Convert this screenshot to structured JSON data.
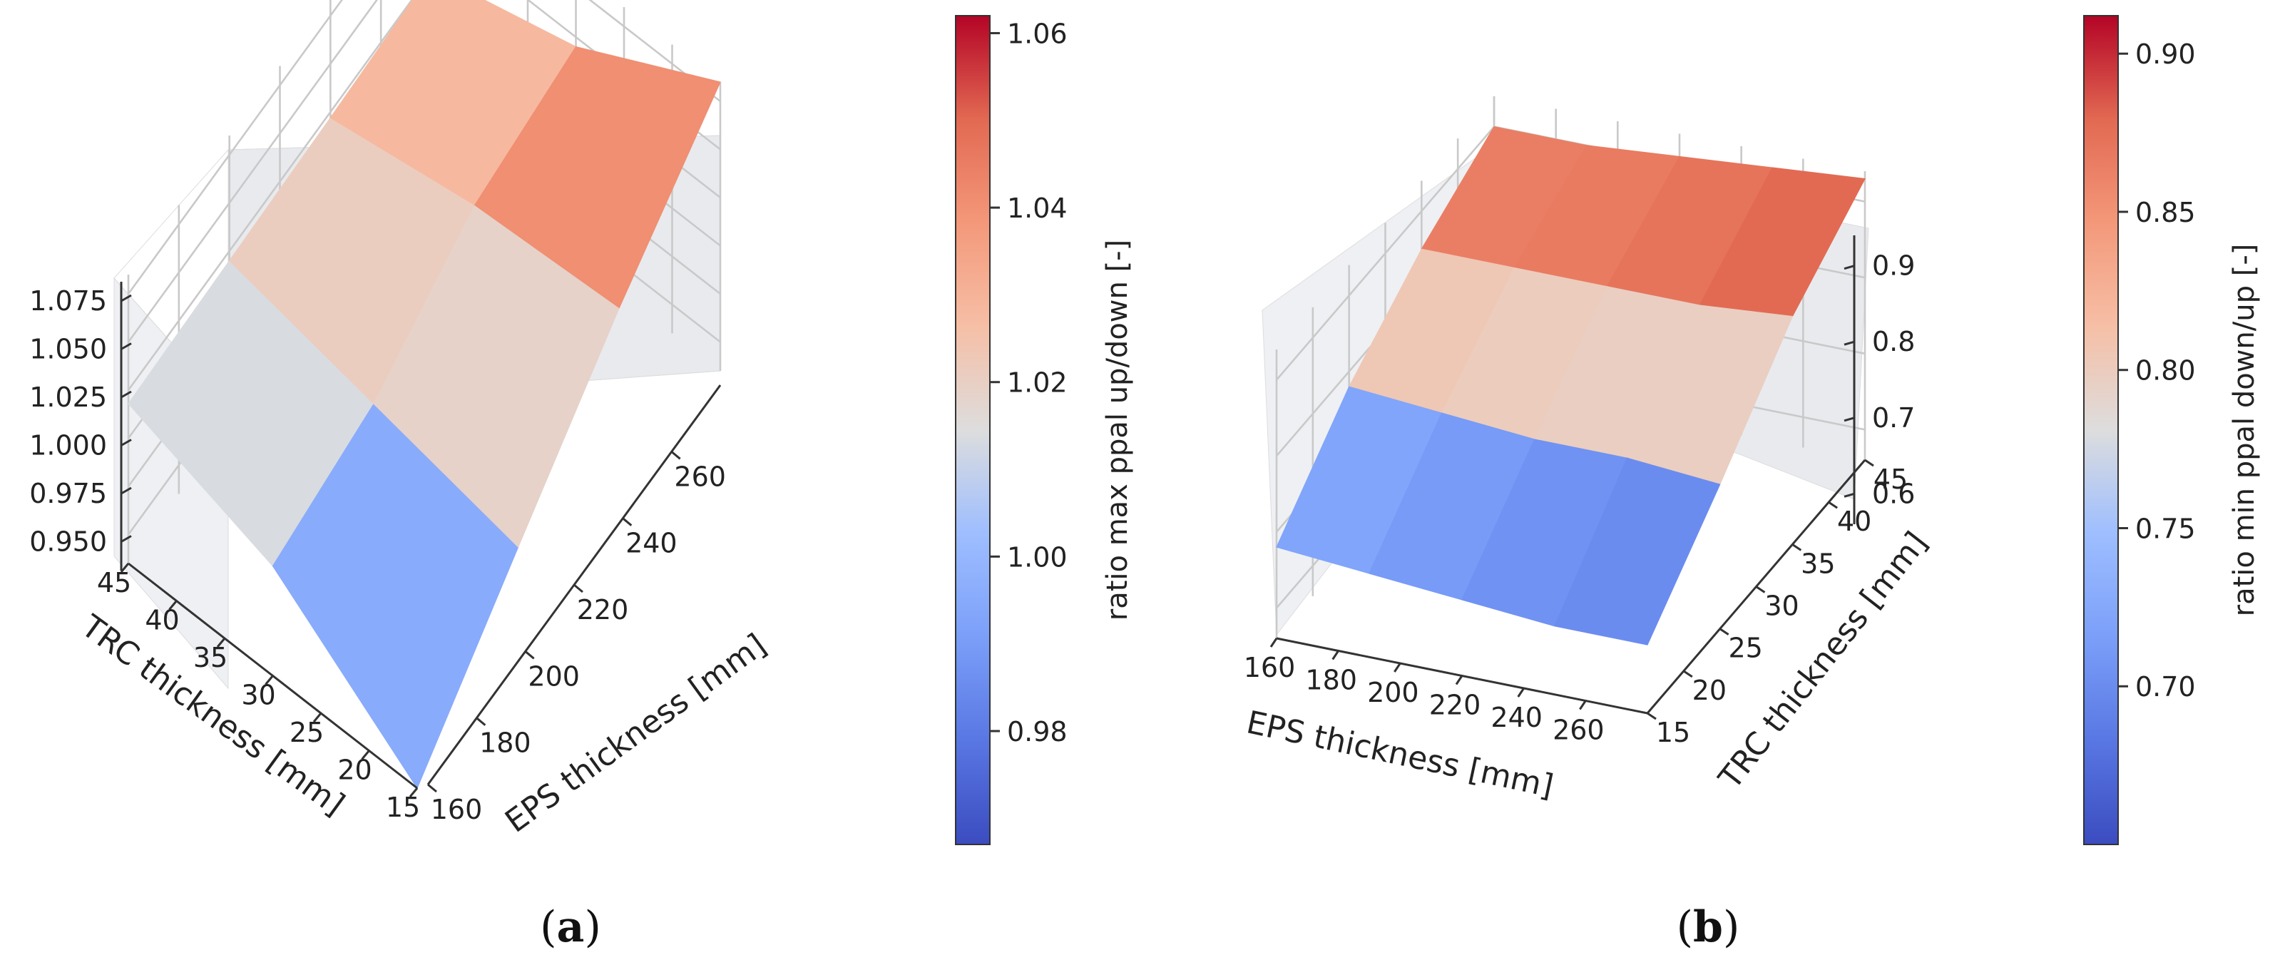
{
  "colors": {
    "cool_low": "#3b4cc0",
    "neutral": "#dddddd",
    "warm_high": "#b40426"
  },
  "chart_data": [
    {
      "panel": "a",
      "caption": "(a)",
      "type": "surface3d",
      "colormap": "coolwarm",
      "x": {
        "label": "TRC thickness [mm]",
        "ticks": [
          "15",
          "20",
          "25",
          "30",
          "35",
          "40",
          "45"
        ]
      },
      "y": {
        "label": "EPS thickness [mm]",
        "ticks": [
          "160",
          "180",
          "200",
          "220",
          "240",
          "260"
        ]
      },
      "z": {
        "ticks": [
          "0.950",
          "0.975",
          "1.000",
          "1.025",
          "1.050",
          "1.075"
        ],
        "range": [
          0.935,
          1.085
        ]
      },
      "grid_trc": [
        15,
        30,
        45
      ],
      "grid_eps": [
        160,
        200,
        240,
        280
      ],
      "z_values": [
        [
          0.935,
          0.988,
          1.04,
          1.085
        ],
        [
          0.992,
          1.004,
          1.035,
          1.045
        ],
        [
          1.018,
          1.02,
          1.022,
          1.025
        ]
      ],
      "colorbar": {
        "label": "ratio max ppal up/down [-]",
        "ticks": [
          "0.98",
          "1.00",
          "1.02",
          "1.04",
          "1.06"
        ],
        "range": [
          0.967,
          1.062
        ]
      }
    },
    {
      "panel": "b",
      "caption": "(b)",
      "type": "surface3d",
      "colormap": "coolwarm",
      "x": {
        "label": "EPS thickness [mm]",
        "ticks": [
          "160",
          "180",
          "200",
          "220",
          "240",
          "260"
        ]
      },
      "y": {
        "label": "TRC thickness [mm]",
        "ticks": [
          "15",
          "20",
          "25",
          "30",
          "35",
          "40",
          "45"
        ]
      },
      "z": {
        "ticks": [
          "0.6",
          "0.7",
          "0.8",
          "0.9"
        ],
        "range": [
          0.56,
          0.94
        ]
      },
      "grid_trc": [
        15,
        25,
        35,
        45
      ],
      "grid_eps": [
        160,
        190,
        220,
        250,
        280
      ],
      "z_values": [
        [
          0.68,
          0.67,
          0.66,
          0.65,
          0.65
        ],
        [
          0.78,
          0.77,
          0.76,
          0.76,
          0.75
        ],
        [
          0.85,
          0.85,
          0.85,
          0.85,
          0.86
        ],
        [
          0.9,
          0.9,
          0.91,
          0.92,
          0.93
        ]
      ],
      "colorbar": {
        "label": "ratio min ppal down/up [-]",
        "ticks": [
          "0.70",
          "0.75",
          "0.80",
          "0.85",
          "0.90"
        ],
        "range": [
          0.65,
          0.912
        ]
      }
    }
  ]
}
